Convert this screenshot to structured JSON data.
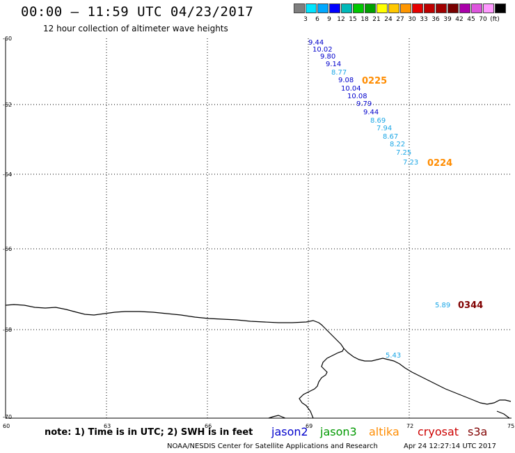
{
  "header": {
    "title": "00:00 – 11:59 UTC 04/23/2017",
    "subtitle": "12 hour collection of altimeter wave heights"
  },
  "colorbar": {
    "colors": [
      "#7f7f7f",
      "#00e5ff",
      "#00a8ff",
      "#0000ff",
      "#00b9b9",
      "#00c800",
      "#00a000",
      "#ffff00",
      "#ffc800",
      "#ff9600",
      "#e60000",
      "#be0000",
      "#a00000",
      "#780000",
      "#aa00aa",
      "#dd55dd",
      "#ff99ff",
      "#000000"
    ],
    "labels": [
      "3",
      "6",
      "9",
      "12",
      "15",
      "18",
      "21",
      "24",
      "27",
      "30",
      "33",
      "36",
      "39",
      "42",
      "45",
      "70",
      "(ft)"
    ]
  },
  "axes": {
    "lat_labels": [
      "-60",
      "-62",
      "-64",
      "-66",
      "-68",
      "-70"
    ],
    "lon_labels": [
      "60",
      "63",
      "66",
      "69",
      "72",
      "75"
    ]
  },
  "pass_times": [
    {
      "label": "0225",
      "color": "#ff8c00"
    },
    {
      "label": "0224",
      "color": "#ff8c00"
    },
    {
      "label": "0344",
      "color": "#800000"
    }
  ],
  "values": [
    {
      "v": "9.44",
      "color": "#0000cc"
    },
    {
      "v": "10.02",
      "color": "#0000cc"
    },
    {
      "v": "9.80",
      "color": "#0000cc"
    },
    {
      "v": "9.14",
      "color": "#0000cc"
    },
    {
      "v": "8.77",
      "color": "#1aa6e6"
    },
    {
      "v": "9.08",
      "color": "#0000cc"
    },
    {
      "v": "10.04",
      "color": "#0000cc"
    },
    {
      "v": "10.08",
      "color": "#0000cc"
    },
    {
      "v": "9.79",
      "color": "#0000cc"
    },
    {
      "v": "9.44",
      "color": "#0000cc"
    },
    {
      "v": "8.69",
      "color": "#1aa6e6"
    },
    {
      "v": "7.94",
      "color": "#1aa6e6"
    },
    {
      "v": "8.67",
      "color": "#1aa6e6"
    },
    {
      "v": "8.22",
      "color": "#1aa6e6"
    },
    {
      "v": "7.25",
      "color": "#1aa6e6"
    },
    {
      "v": "7.23",
      "color": "#1aa6e6"
    },
    {
      "v": "5.89",
      "color": "#1aa6e6"
    },
    {
      "v": "5.43",
      "color": "#1aa6e6"
    }
  ],
  "note": "note: 1) Time is in UTC; 2) SWH is in feet",
  "satellites": [
    {
      "name": "jason2",
      "color": "#0000cc"
    },
    {
      "name": "jason3",
      "color": "#009900"
    },
    {
      "name": "altika",
      "color": "#ff8c00"
    },
    {
      "name": "cryosat",
      "color": "#cc0000"
    },
    {
      "name": "s3a",
      "color": "#800000"
    }
  ],
  "footer": {
    "credit": "NOAA/NESDIS Center for Satellite Applications and Research",
    "timestamp": "Apr 24 12:27:14 UTC 2017"
  }
}
